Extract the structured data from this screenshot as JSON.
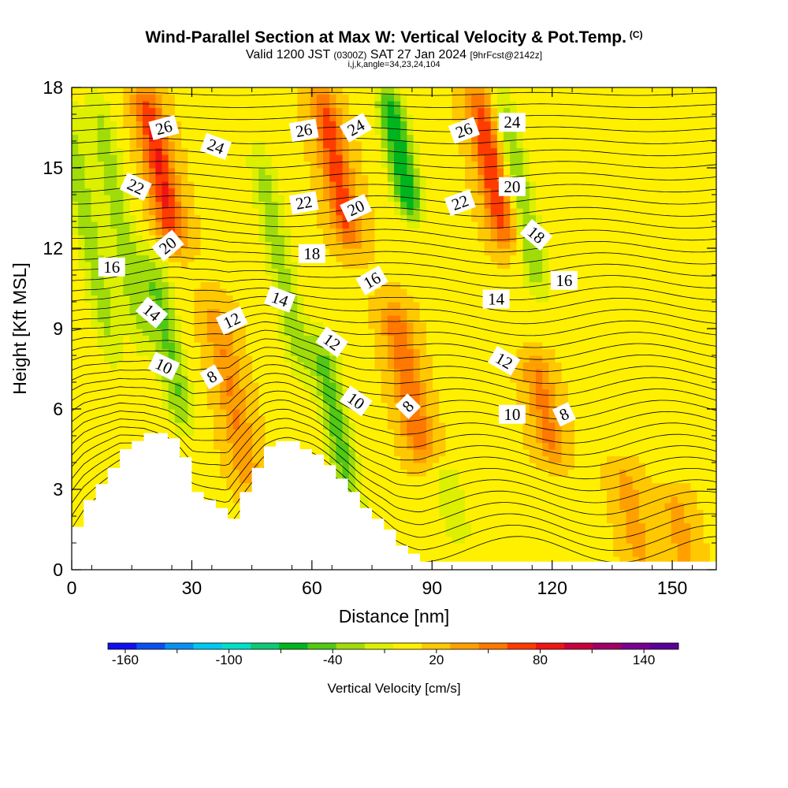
{
  "header": {
    "title": "Wind-Parallel Section at Max W: Vertical Velocity & Pot.Temp.",
    "copyright": "(C)",
    "valid_prefix": "Valid 1200 JST",
    "valid_utc": "(0300Z)",
    "valid_date": "SAT 27 Jan 2024",
    "forecast": "[9hrFcst@2142z]",
    "params": "i,j,k,angle=34,23,24,104"
  },
  "colorbar": {
    "title": "Vertical Velocity [cm/s]",
    "tick_labels": [
      "-160",
      "-100",
      "-40",
      "20",
      "80",
      "140"
    ],
    "colors": [
      "#1010ee",
      "#0a50f0",
      "#0a90f0",
      "#00c8f0",
      "#00e0c8",
      "#10c878",
      "#00b41e",
      "#50c814",
      "#a0dc0a",
      "#dcf000",
      "#fff000",
      "#ffc800",
      "#ffa000",
      "#ff7800",
      "#ff3c00",
      "#f01414",
      "#c8003c",
      "#a00064",
      "#780090",
      "#5a0096"
    ]
  },
  "chart_data": {
    "type": "heatmap",
    "xlabel": "Distance [nm]",
    "ylabel": "Height [Kft MSL]",
    "xlim": [
      0,
      161
    ],
    "ylim": [
      0,
      18
    ],
    "x_ticks": [
      0,
      30,
      60,
      90,
      120,
      150
    ],
    "y_ticks": [
      0,
      3,
      6,
      9,
      12,
      15,
      18
    ],
    "color_variable": "Vertical Velocity [cm/s]",
    "contour_variable": "Pot.Temp.",
    "colorbar_range": [
      -170,
      160
    ],
    "vertical_velocity_features": [
      {
        "x": 4,
        "sign": "down",
        "peak": -40,
        "bottom": 7.5,
        "top": 18
      },
      {
        "x": 12,
        "sign": "down",
        "peak": -40,
        "bottom": 8,
        "top": 18
      },
      {
        "x": 22,
        "sign": "up",
        "peak": 70,
        "bottom": 12,
        "top": 18
      },
      {
        "x": 24,
        "sign": "down",
        "peak": -50,
        "bottom": 5,
        "top": 12
      },
      {
        "x": 40,
        "sign": "up",
        "peak": 35,
        "bottom": 3,
        "top": 10
      },
      {
        "x": 52,
        "sign": "down",
        "peak": -40,
        "bottom": 7,
        "top": 16
      },
      {
        "x": 66,
        "sign": "down",
        "peak": -55,
        "bottom": 2,
        "top": 9
      },
      {
        "x": 66,
        "sign": "up",
        "peak": 60,
        "bottom": 12,
        "top": 18
      },
      {
        "x": 82,
        "sign": "down",
        "peak": -80,
        "bottom": 13,
        "top": 18
      },
      {
        "x": 84,
        "sign": "up",
        "peak": 50,
        "bottom": 4,
        "top": 10
      },
      {
        "x": 95,
        "sign": "down",
        "peak": -30,
        "bottom": 1,
        "top": 4
      },
      {
        "x": 105,
        "sign": "up",
        "peak": 70,
        "bottom": 12,
        "top": 18
      },
      {
        "x": 112,
        "sign": "down",
        "peak": -45,
        "bottom": 10,
        "top": 18
      },
      {
        "x": 118,
        "sign": "up",
        "peak": 40,
        "bottom": 4,
        "top": 8
      },
      {
        "x": 140,
        "sign": "up",
        "peak": 25,
        "bottom": 0,
        "top": 4
      },
      {
        "x": 152,
        "sign": "up",
        "peak": 25,
        "bottom": 0,
        "top": 3
      }
    ],
    "terrain": {
      "x": [
        0,
        3,
        6,
        9,
        12,
        15,
        18,
        21,
        24,
        27,
        30,
        33,
        36,
        39,
        42,
        45,
        48,
        51,
        54,
        57,
        60,
        63,
        66,
        69,
        72,
        75,
        78,
        81,
        84,
        87,
        90,
        161
      ],
      "height": [
        1.6,
        2.6,
        3.2,
        3.8,
        4.5,
        4.8,
        5.1,
        5.1,
        4.9,
        4.2,
        2.9,
        2.6,
        2.3,
        1.9,
        2.9,
        3.8,
        4.6,
        4.8,
        4.8,
        4.5,
        4.3,
        3.9,
        3.4,
        2.9,
        2.3,
        1.9,
        1.5,
        0.9,
        0.6,
        0.3,
        0.3,
        0.3
      ]
    },
    "contour_labels": [
      {
        "text": "26",
        "x": 23,
        "y": 16.5,
        "angle": -15
      },
      {
        "text": "24",
        "x": 36,
        "y": 15.8,
        "angle": 20
      },
      {
        "text": "22",
        "x": 16,
        "y": 14.3,
        "angle": 25
      },
      {
        "text": "20",
        "x": 24,
        "y": 12.1,
        "angle": -40
      },
      {
        "text": "16",
        "x": 10,
        "y": 11.3,
        "angle": 0
      },
      {
        "text": "14",
        "x": 20,
        "y": 9.6,
        "angle": 40
      },
      {
        "text": "12",
        "x": 40,
        "y": 9.3,
        "angle": -25
      },
      {
        "text": "10",
        "x": 23,
        "y": 7.6,
        "angle": 25
      },
      {
        "text": "8",
        "x": 35,
        "y": 7.2,
        "angle": -30
      },
      {
        "text": "26",
        "x": 58,
        "y": 16.4,
        "angle": -10
      },
      {
        "text": "24",
        "x": 71,
        "y": 16.5,
        "angle": -30
      },
      {
        "text": "22",
        "x": 58,
        "y": 13.7,
        "angle": -10
      },
      {
        "text": "20",
        "x": 71,
        "y": 13.5,
        "angle": -25
      },
      {
        "text": "18",
        "x": 60,
        "y": 11.8,
        "angle": 0
      },
      {
        "text": "14",
        "x": 52,
        "y": 10.1,
        "angle": 20
      },
      {
        "text": "16",
        "x": 75,
        "y": 10.8,
        "angle": -30
      },
      {
        "text": "12",
        "x": 65,
        "y": 8.5,
        "angle": 35
      },
      {
        "text": "10",
        "x": 71,
        "y": 6.3,
        "angle": 35
      },
      {
        "text": "8",
        "x": 84,
        "y": 6.1,
        "angle": -45
      },
      {
        "text": "26",
        "x": 98,
        "y": 16.4,
        "angle": -20
      },
      {
        "text": "24",
        "x": 110,
        "y": 16.7,
        "angle": 0
      },
      {
        "text": "22",
        "x": 97,
        "y": 13.7,
        "angle": -20
      },
      {
        "text": "20",
        "x": 110,
        "y": 14.3,
        "angle": 0
      },
      {
        "text": "18",
        "x": 116,
        "y": 12.5,
        "angle": 40
      },
      {
        "text": "16",
        "x": 123,
        "y": 10.8,
        "angle": 0
      },
      {
        "text": "14",
        "x": 106,
        "y": 10.1,
        "angle": 0
      },
      {
        "text": "12",
        "x": 108,
        "y": 7.8,
        "angle": 30
      },
      {
        "text": "10",
        "x": 110,
        "y": 5.8,
        "angle": 0
      },
      {
        "text": "8",
        "x": 123,
        "y": 5.8,
        "angle": -25
      }
    ]
  }
}
